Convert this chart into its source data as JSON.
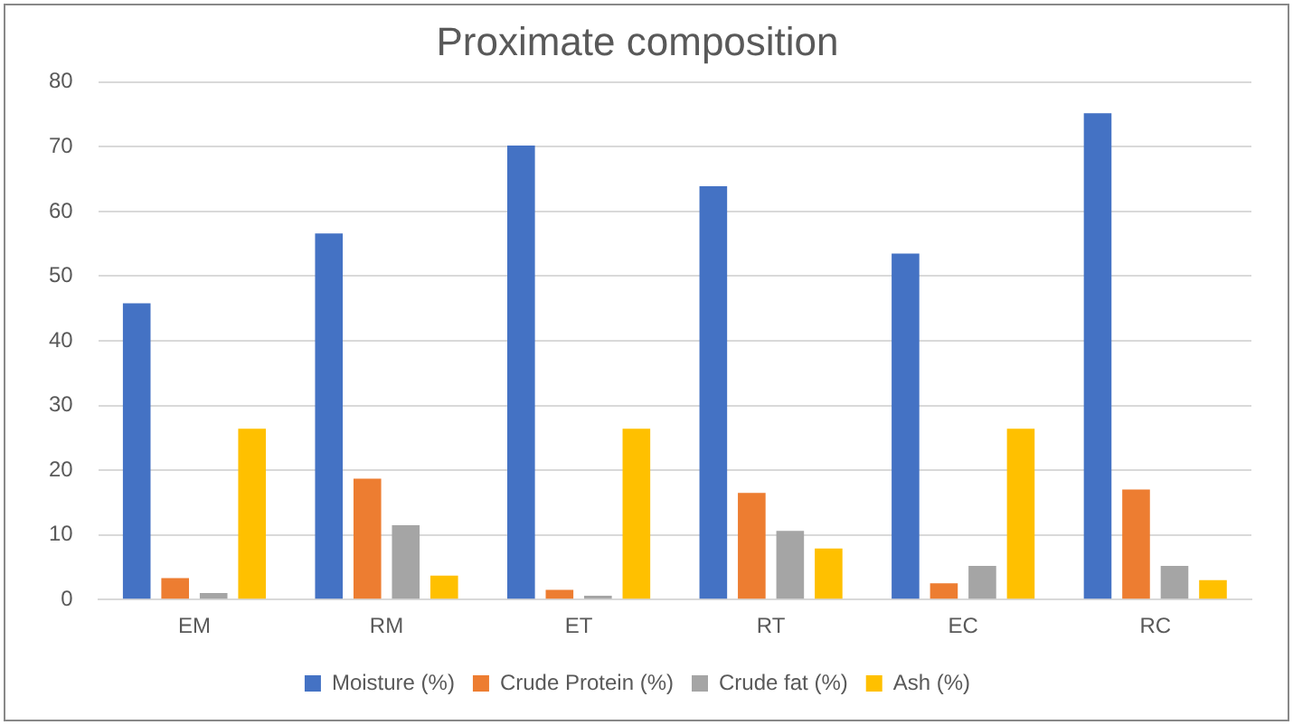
{
  "chart_data": {
    "type": "bar",
    "title": "Proximate composition",
    "categories": [
      "EM",
      "RM",
      "ET",
      "RT",
      "EC",
      "RC"
    ],
    "series": [
      {
        "name": "Moisture (%)",
        "color": "#4472c4",
        "values": [
          45.8,
          56.6,
          70.2,
          63.9,
          53.5,
          75.2
        ]
      },
      {
        "name": "Crude Protein (%)",
        "color": "#ed7d31",
        "values": [
          3.3,
          18.7,
          1.5,
          16.5,
          2.5,
          17.0
        ]
      },
      {
        "name": "Crude fat (%)",
        "color": "#a5a5a5",
        "values": [
          1.0,
          11.5,
          0.6,
          10.6,
          5.2,
          5.2
        ]
      },
      {
        "name": "Ash (%)",
        "color": "#ffc000",
        "values": [
          26.4,
          3.7,
          26.4,
          7.9,
          26.4,
          3.0
        ]
      }
    ],
    "ylim": [
      0,
      80
    ],
    "yticks": [
      0,
      10,
      20,
      30,
      40,
      50,
      60,
      70,
      80
    ],
    "grid": "y",
    "legend": "bottom"
  }
}
